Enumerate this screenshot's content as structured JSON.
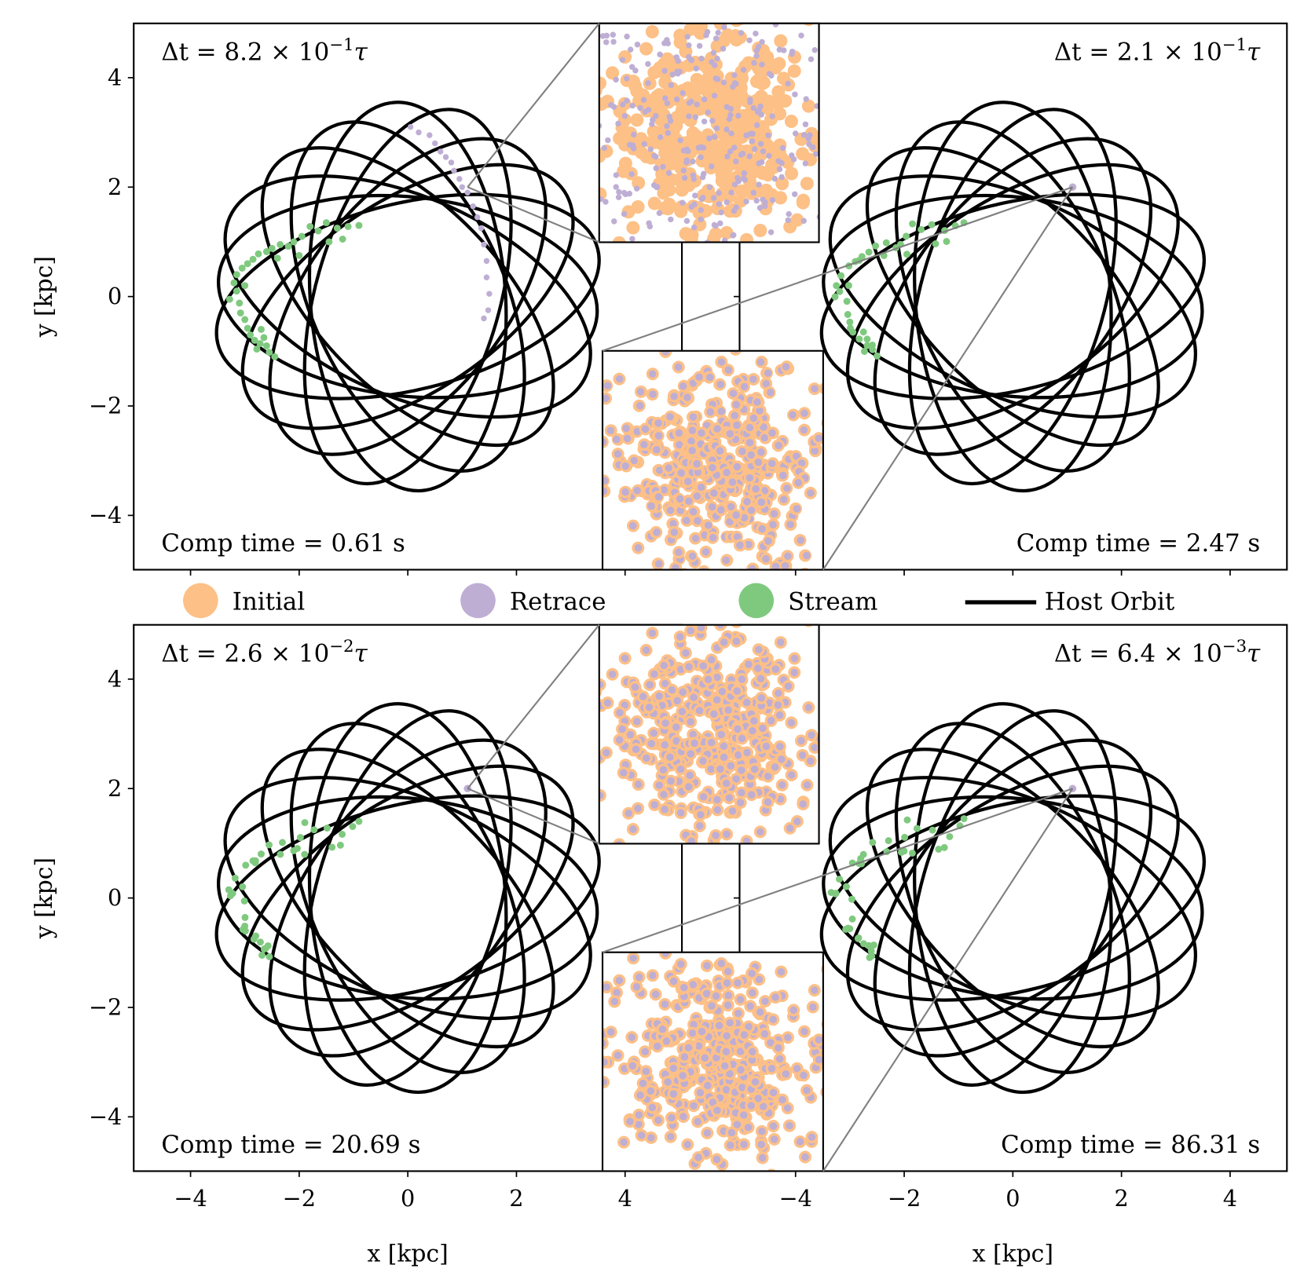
{
  "chart_data": {
    "type": "scatter",
    "title": "",
    "xlabel": "x [kpc]",
    "ylabel": "y [kpc]",
    "xlim": [
      -5,
      5
    ],
    "ylim": [
      -5,
      5
    ],
    "xticks": [
      "−4",
      "−2",
      "0",
      "2",
      "4"
    ],
    "yticks": [
      "4",
      "2",
      "0",
      "−2",
      "−4"
    ],
    "legend": {
      "placement": "center",
      "entries": [
        {
          "label": "Initial",
          "color": "#fdc086",
          "marker": "circle"
        },
        {
          "label": "Retrace",
          "color": "#beaed4",
          "marker": "circle"
        },
        {
          "label": "Stream",
          "color": "#7fc97f",
          "marker": "circle"
        },
        {
          "label": "Host Orbit",
          "color": "#000000",
          "marker": "line"
        }
      ]
    },
    "host_orbit": {
      "shape": "precessing ellipse loops",
      "semi_major": 3.5,
      "semi_minor": 1.75,
      "loop_angles_deg": [
        -6,
        14,
        34,
        52,
        74,
        94,
        114,
        134,
        156
      ]
    },
    "progenitor_position": [
      1.1,
      2.0
    ],
    "stream_points": [
      [
        -0.9,
        1.3
      ],
      [
        -1.1,
        1.28
      ],
      [
        -1.3,
        1.25
      ],
      [
        -1.5,
        1.35
      ],
      [
        -1.65,
        1.2
      ],
      [
        -1.8,
        1.28
      ],
      [
        -1.95,
        1.1
      ],
      [
        -2.1,
        1.0
      ],
      [
        -2.2,
        0.92
      ],
      [
        -2.35,
        0.95
      ],
      [
        -2.5,
        0.88
      ],
      [
        -2.6,
        0.82
      ],
      [
        -2.75,
        0.78
      ],
      [
        -2.85,
        0.68
      ],
      [
        -2.95,
        0.6
      ],
      [
        -3.05,
        0.52
      ],
      [
        -3.15,
        0.4
      ],
      [
        -3.2,
        0.25
      ],
      [
        -3.15,
        0.1
      ],
      [
        -3.28,
        -0.05
      ],
      [
        -3.1,
        -0.12
      ],
      [
        -3.08,
        -0.3
      ],
      [
        -3.0,
        -0.42
      ],
      [
        -2.95,
        -0.58
      ],
      [
        -2.9,
        -0.7
      ],
      [
        -2.82,
        -0.8
      ],
      [
        -2.72,
        -0.86
      ],
      [
        -2.78,
        -0.96
      ],
      [
        -2.6,
        -0.9
      ],
      [
        -2.55,
        -1.02
      ],
      [
        -2.45,
        -1.1
      ],
      [
        -1.2,
        1.05
      ],
      [
        -1.45,
        1.0
      ],
      [
        -2.0,
        0.75
      ],
      [
        -2.4,
        0.7
      ],
      [
        -3.0,
        0.2
      ],
      [
        -2.7,
        -0.6
      ],
      [
        -2.65,
        -0.75
      ]
    ],
    "retrace_points_panel1": [
      [
        0.05,
        3.1
      ],
      [
        0.2,
        3.0
      ],
      [
        0.4,
        2.95
      ],
      [
        0.5,
        2.8
      ],
      [
        0.6,
        2.65
      ],
      [
        0.7,
        2.55
      ],
      [
        0.8,
        2.45
      ],
      [
        0.85,
        2.3
      ],
      [
        0.95,
        2.15
      ],
      [
        1.0,
        2.0
      ],
      [
        1.1,
        1.9
      ],
      [
        1.2,
        1.65
      ],
      [
        1.28,
        1.45
      ],
      [
        1.35,
        1.25
      ],
      [
        1.4,
        0.95
      ],
      [
        1.45,
        0.65
      ],
      [
        1.45,
        0.35
      ],
      [
        1.5,
        0.05
      ],
      [
        1.48,
        -0.25
      ],
      [
        1.4,
        -0.4
      ]
    ],
    "panels": [
      {
        "dt_text": "Δt = 8.2 × 10",
        "dt_exp": "−1",
        "dt_unit": "τ",
        "comp_time": "Comp time = 0.61 s",
        "dt_value": 0.82
      },
      {
        "dt_text": "Δt = 2.1 × 10",
        "dt_exp": "−1",
        "dt_unit": "τ",
        "comp_time": "Comp time = 2.47 s",
        "dt_value": 0.21
      },
      {
        "dt_text": "Δt = 2.6 × 10",
        "dt_exp": "−2",
        "dt_unit": "τ",
        "comp_time": "Comp time = 20.69 s",
        "dt_value": 0.026
      },
      {
        "dt_text": "Δt = 6.4 × 10",
        "dt_exp": "−3",
        "dt_unit": "τ",
        "comp_time": "Comp time = 86.31 s",
        "dt_value": 0.0064
      }
    ]
  }
}
